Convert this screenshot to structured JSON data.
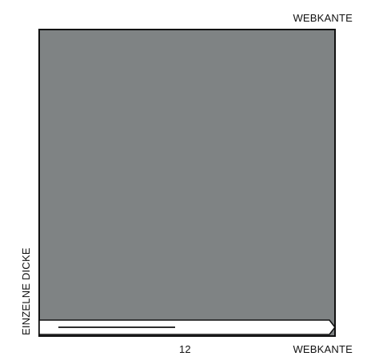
{
  "labels": {
    "top_right": "WEBKANTE",
    "bottom_right": "WEBKANTE",
    "measure": "12",
    "left_vertical": "EINZELNE DICKE"
  },
  "colors": {
    "fabric": "#7f8384",
    "outline": "#111111",
    "background": "#ffffff"
  }
}
